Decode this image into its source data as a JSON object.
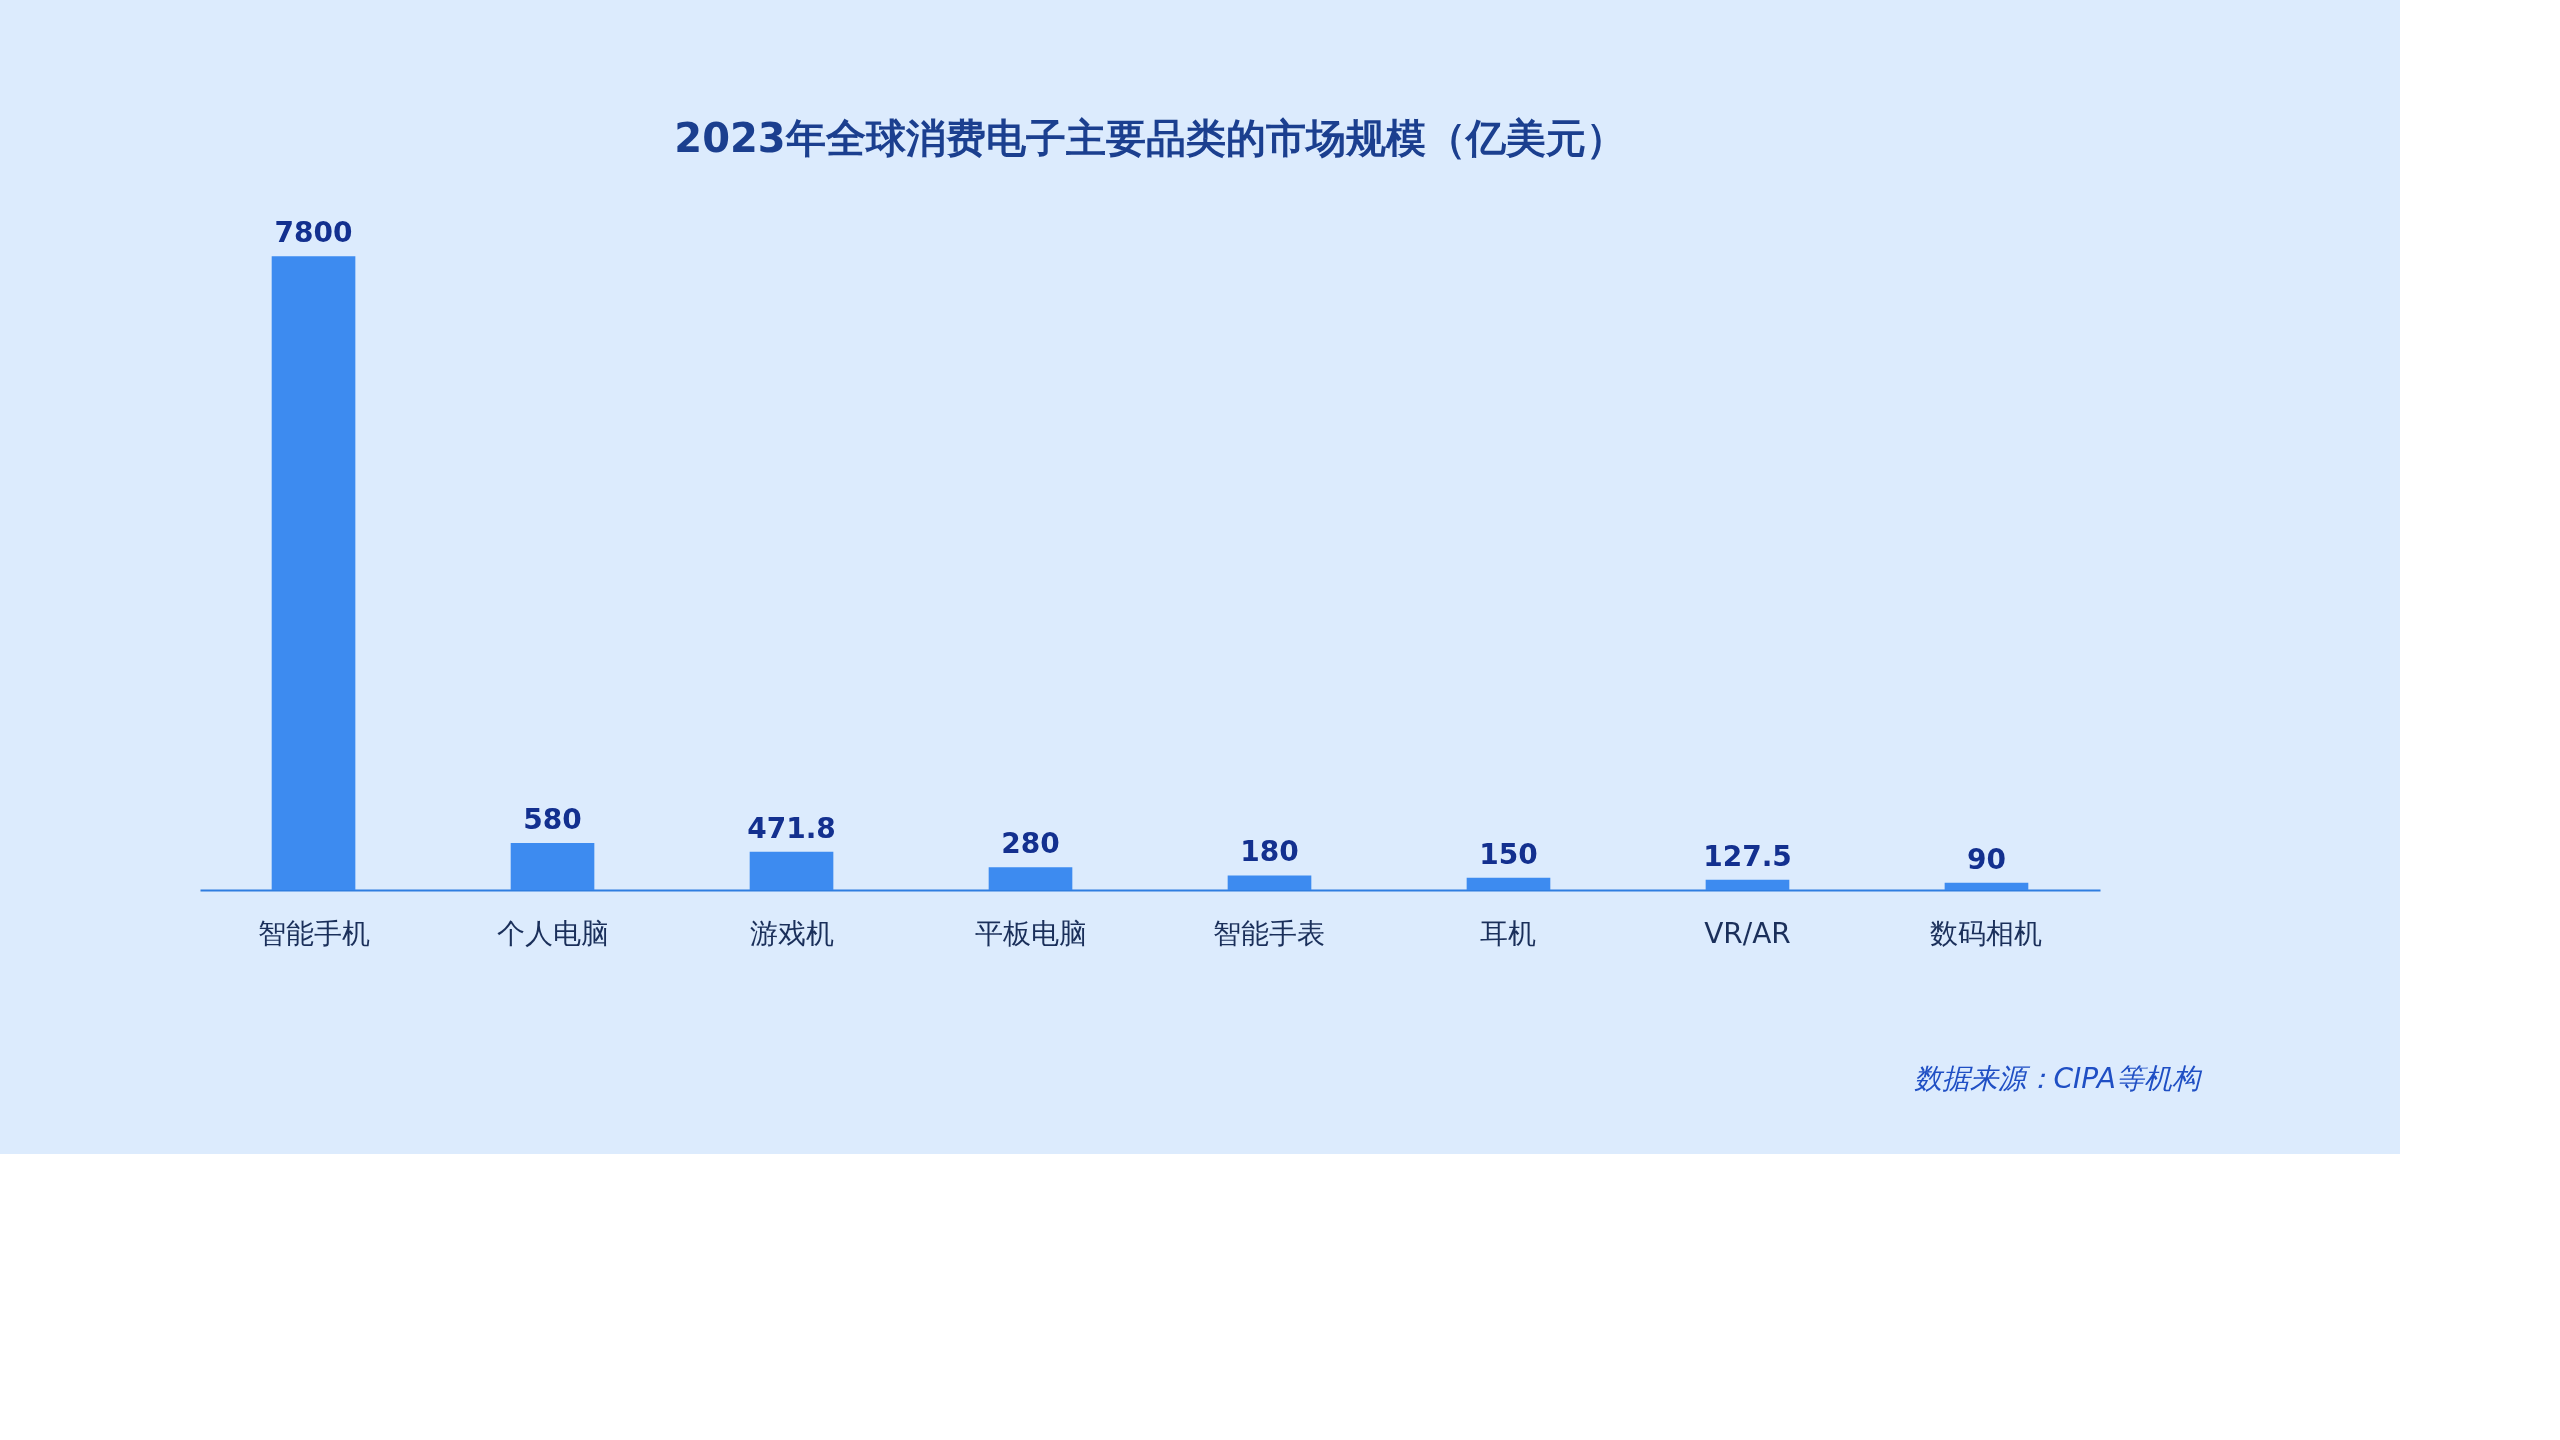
{
  "chart_data": {
    "type": "bar",
    "title": "2023年全球消费电子主要品类的市场规模（亿美元）",
    "categories": [
      "智能手机",
      "个人电脑",
      "游戏机",
      "平板电脑",
      "智能手表",
      "耳机",
      "VR/AR",
      "数码相机"
    ],
    "values": [
      7800,
      580,
      471.8,
      280,
      180,
      150,
      127.5,
      90
    ],
    "color": "#3d8bf0",
    "data_labels": true,
    "annotations": [
      "数据来源：CIPA等机构"
    ]
  }
}
